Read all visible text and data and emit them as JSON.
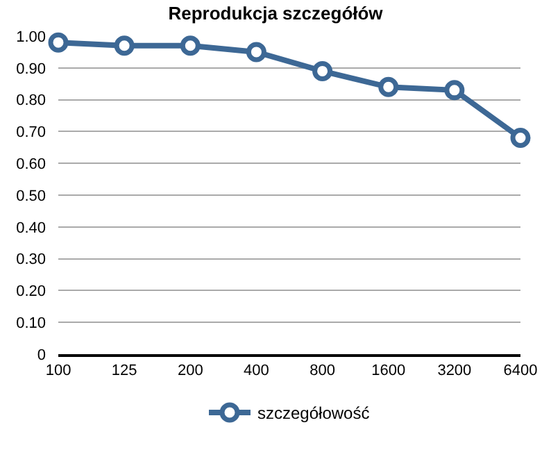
{
  "chart_data": {
    "type": "line",
    "title": "Reprodukcja szczegółów",
    "categories": [
      "100",
      "125",
      "200",
      "400",
      "800",
      "1600",
      "3200",
      "6400"
    ],
    "series": [
      {
        "name": "szczegółowość",
        "color": "#3d6895",
        "values": [
          0.98,
          0.97,
          0.97,
          0.95,
          0.89,
          0.84,
          0.83,
          0.68
        ]
      }
    ],
    "ylim": [
      0,
      1
    ],
    "yticks": [
      0,
      {
        "value": 0.1,
        "label": "0.10"
      },
      {
        "value": 0.2,
        "label": "0.20"
      },
      {
        "value": 0.3,
        "label": "0.30"
      },
      {
        "value": 0.4,
        "label": "0.40"
      },
      {
        "value": 0.5,
        "label": "0.50"
      },
      {
        "value": 0.6,
        "label": "0.60"
      },
      {
        "value": 0.7,
        "label": "0.70"
      },
      {
        "value": 0.8,
        "label": "0.80"
      },
      {
        "value": 0.9,
        "label": "0.90"
      },
      {
        "value": 1,
        "label": "1.00"
      }
    ],
    "grid": "y",
    "legend": "bottom",
    "marker": "circle",
    "line_style": "solid"
  }
}
